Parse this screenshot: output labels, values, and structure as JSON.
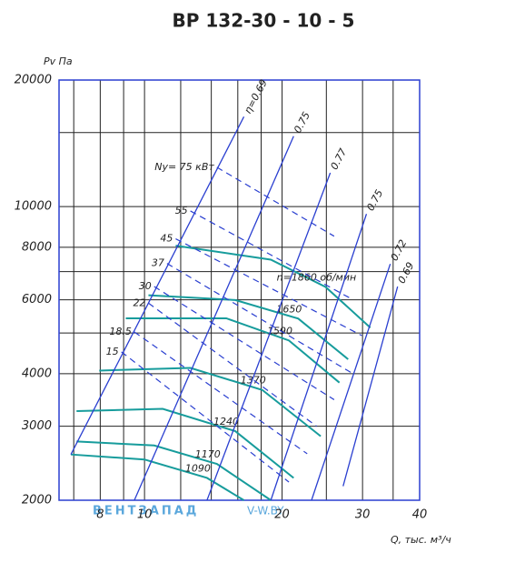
{
  "chart_data": {
    "type": "line",
    "title": "ВР 132-30 - 10 - 5",
    "xlabel": "Q, тыс. м³/ч",
    "ylabel": "Pv Па",
    "watermark": [
      "ВЕНТЗАПАД",
      "V-W.BY"
    ],
    "xscale": "log",
    "yscale": "log",
    "xlim": [
      6.5,
      40
    ],
    "ylim": [
      2000,
      20000
    ],
    "xticks": [
      8,
      10,
      20,
      30,
      40
    ],
    "yticks": [
      2000,
      3000,
      4000,
      6000,
      8000,
      10000,
      20000
    ],
    "minor_xticks": [
      7,
      9,
      12,
      14,
      16,
      18,
      25,
      35
    ],
    "minor_yticks": [
      5000,
      7000,
      15000
    ],
    "grid": true,
    "frame_color": "#2a3fd0",
    "fan_curves": {
      "color": "#179c9c",
      "series": [
        {
          "name": "n=1860 об/мин",
          "x": [
            11.7,
            18.9,
            24.9,
            31.2
          ],
          "values": [
            8070,
            7474,
            6437,
            5150
          ]
        },
        {
          "name": "1650",
          "x": [
            10.2,
            15.8,
            21.7,
            27.9
          ],
          "values": [
            6150,
            5990,
            5410,
            4330
          ]
        },
        {
          "name": "1590",
          "x": [
            9.1,
            15.1,
            20.7,
            26.7
          ],
          "values": [
            5420,
            5420,
            4800,
            3810
          ]
        },
        {
          "name": "1370",
          "x": [
            7.96,
            12.6,
            18.1,
            24.3
          ],
          "values": [
            4070,
            4130,
            3660,
            2840
          ]
        },
        {
          "name": "1240",
          "x": [
            7.1,
            10.96,
            15.8,
            21.2
          ],
          "values": [
            3260,
            3300,
            2920,
            2260
          ]
        },
        {
          "name": "1170",
          "x": [
            7.1,
            10.5,
            14.4,
            18.9
          ],
          "values": [
            2760,
            2700,
            2440,
            2000
          ]
        },
        {
          "name": "1090",
          "x": [
            6.9,
            10,
            13.7,
            16.5
          ],
          "values": [
            2570,
            2500,
            2260,
            2000
          ]
        }
      ]
    },
    "efficiency_lines": {
      "color": "#2a3fd0",
      "series": [
        {
          "name": "η=0.69",
          "x": [
            6.9,
            16.5
          ],
          "values": [
            2570,
            16360
          ]
        },
        {
          "name": "0.75",
          "x": [
            9.5,
            21.2
          ],
          "values": [
            2000,
            14700
          ]
        },
        {
          "name": "0.77",
          "x": [
            13.7,
            25.5
          ],
          "values": [
            2000,
            12030
          ]
        },
        {
          "name": "0.75",
          "x": [
            18.9,
            30.6
          ],
          "values": [
            2000,
            9600
          ]
        },
        {
          "name": "0.72",
          "x": [
            23.2,
            34.5
          ],
          "values": [
            2000,
            7300
          ]
        },
        {
          "name": "0.69",
          "x": [
            27.2,
            35.8
          ],
          "values": [
            2160,
            6450
          ]
        }
      ]
    },
    "power_lines": {
      "color": "#2a3fd0",
      "series": [
        {
          "name": "Ny= 75 кВт",
          "x": [
            14.4,
            26
          ],
          "values": [
            12400,
            8500
          ]
        },
        {
          "name": "55",
          "x": [
            12.6,
            28.6
          ],
          "values": [
            9760,
            6000
          ]
        },
        {
          "name": "45",
          "x": [
            11.7,
            29.9
          ],
          "values": [
            8380,
            4930
          ]
        },
        {
          "name": "37",
          "x": [
            11.2,
            28.6
          ],
          "values": [
            7320,
            4000
          ]
        },
        {
          "name": "30",
          "x": [
            10.5,
            26
          ],
          "values": [
            6450,
            3470
          ]
        },
        {
          "name": "22",
          "x": [
            10.2,
            23.8
          ],
          "values": [
            5890,
            3000
          ]
        },
        {
          "name": "18.5",
          "x": [
            9.5,
            22.7
          ],
          "values": [
            5030,
            2580
          ]
        },
        {
          "name": "15",
          "x": [
            8.9,
            20.7
          ],
          "values": [
            4510,
            2210
          ]
        }
      ]
    }
  }
}
